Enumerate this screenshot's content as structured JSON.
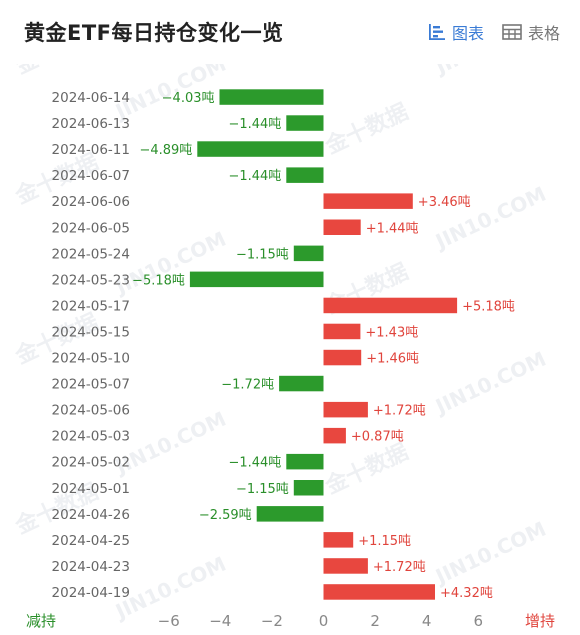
{
  "header": {
    "title": "黄金ETF每日持仓变化一览",
    "tabs": [
      {
        "label": "图表",
        "icon": "bar-chart-icon",
        "active": true
      },
      {
        "label": "表格",
        "icon": "table-icon",
        "active": false
      }
    ]
  },
  "colors": {
    "increase": "#e8473f",
    "decrease": "#2c9a2c",
    "increase_text": "#e0443c",
    "decrease_text": "#2a8f2a",
    "label": "#666666",
    "axis_label": "#888888"
  },
  "chart_data": {
    "type": "bar",
    "orientation": "horizontal",
    "categories": [
      "2024-06-14",
      "2024-06-13",
      "2024-06-11",
      "2024-06-07",
      "2024-06-06",
      "2024-06-05",
      "2024-05-24",
      "2024-05-23",
      "2024-05-17",
      "2024-05-15",
      "2024-05-10",
      "2024-05-07",
      "2024-05-06",
      "2024-05-03",
      "2024-05-02",
      "2024-05-01",
      "2024-04-26",
      "2024-04-25",
      "2024-04-23",
      "2024-04-19"
    ],
    "values": [
      -4.03,
      -1.44,
      -4.89,
      -1.44,
      3.46,
      1.44,
      -1.15,
      -5.18,
      5.18,
      1.43,
      1.46,
      -1.72,
      1.72,
      0.87,
      -1.44,
      -1.15,
      -2.59,
      1.15,
      1.72,
      4.32
    ],
    "data_labels": [
      "−4.03吨",
      "−1.44吨",
      "−4.89吨",
      "−1.44吨",
      "+3.46吨",
      "+1.44吨",
      "−1.15吨",
      "−5.18吨",
      "+5.18吨",
      "+1.43吨",
      "+1.46吨",
      "−1.72吨",
      "+1.72吨",
      "+0.87吨",
      "−1.44吨",
      "−1.15吨",
      "−2.59吨",
      "+1.15吨",
      "+1.72吨",
      "+4.32吨"
    ],
    "xlim": [
      -6,
      6
    ],
    "xticks": [
      "−6",
      "−4",
      "−2",
      "0",
      "2",
      "4",
      "6"
    ],
    "xtick_values": [
      -6,
      -4,
      -2,
      0,
      2,
      4,
      6
    ],
    "left_axis_label": "减持",
    "right_axis_label": "增持",
    "grid": false
  },
  "watermark": {
    "cn": "金十数据",
    "en": "JIN10.COM"
  }
}
